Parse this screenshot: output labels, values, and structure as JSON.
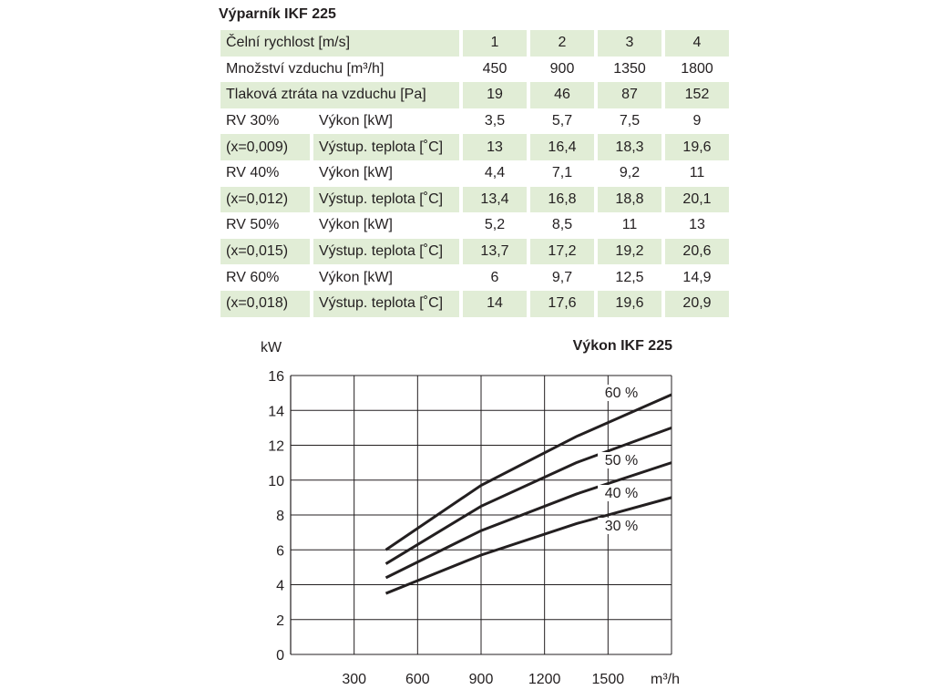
{
  "table": {
    "title": "Výparník IKF 225",
    "rows": [
      {
        "label": "Čelní rychlost [m/s]",
        "values": [
          "1",
          "2",
          "3",
          "4"
        ]
      },
      {
        "label": "Množství vzduchu [m³/h]",
        "values": [
          "450",
          "900",
          "1350",
          "1800"
        ]
      },
      {
        "label": "Tlaková ztráta na vzduchu [Pa]",
        "values": [
          "19",
          "46",
          "87",
          "152"
        ]
      },
      {
        "label1": "RV 30%",
        "label2": "Výkon [kW]",
        "values": [
          "3,5",
          "5,7",
          "7,5",
          "9"
        ]
      },
      {
        "label1": "(x=0,009)",
        "label2": "Výstup. teplota [˚C]",
        "values": [
          "13",
          "16,4",
          "18,3",
          "19,6"
        ]
      },
      {
        "label1": "RV 40%",
        "label2": "Výkon [kW]",
        "values": [
          "4,4",
          "7,1",
          "9,2",
          "11"
        ]
      },
      {
        "label1": "(x=0,012)",
        "label2": "Výstup. teplota [˚C]",
        "values": [
          "13,4",
          "16,8",
          "18,8",
          "20,1"
        ]
      },
      {
        "label1": "RV 50%",
        "label2": "Výkon [kW]",
        "values": [
          "5,2",
          "8,5",
          "11",
          "13"
        ]
      },
      {
        "label1": "(x=0,015)",
        "label2": "Výstup. teplota [˚C]",
        "values": [
          "13,7",
          "17,2",
          "19,2",
          "20,6"
        ]
      },
      {
        "label1": "RV 60%",
        "label2": "Výkon [kW]",
        "values": [
          "6",
          "9,7",
          "12,5",
          "14,9"
        ]
      },
      {
        "label1": "(x=0,018)",
        "label2": "Výstup. teplota [˚C]",
        "values": [
          "14",
          "17,6",
          "19,6",
          "20,9"
        ]
      }
    ]
  },
  "chart_data": {
    "type": "line",
    "title": "Výkon IKF 225",
    "ylabel": "kW",
    "xlabel": "m³/h",
    "xlim": [
      0,
      1800
    ],
    "ylim": [
      0,
      16
    ],
    "xticks": [
      "300",
      "600",
      "900",
      "1200",
      "1500"
    ],
    "yticks": [
      "0",
      "2",
      "4",
      "6",
      "8",
      "10",
      "12",
      "14",
      "16"
    ],
    "grid": true,
    "x": [
      450,
      900,
      1350,
      1800
    ],
    "series": [
      {
        "name": "30 %",
        "values": [
          3.5,
          5.7,
          7.5,
          9
        ]
      },
      {
        "name": "40 %",
        "values": [
          4.4,
          7.1,
          9.2,
          11
        ]
      },
      {
        "name": "50 %",
        "values": [
          5.2,
          8.5,
          11,
          13
        ]
      },
      {
        "name": "60 %",
        "values": [
          6,
          9.7,
          12.5,
          14.9
        ]
      }
    ]
  }
}
